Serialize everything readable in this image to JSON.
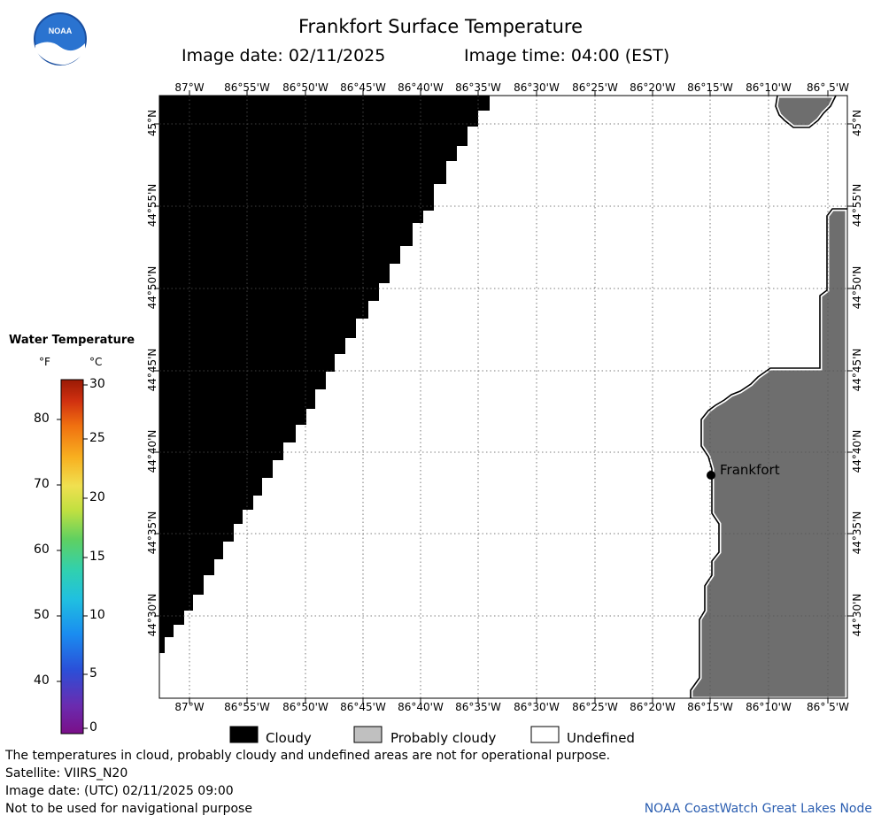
{
  "header": {
    "title": "Frankfort Surface Temperature",
    "image_date": "Image date: 02/11/2025",
    "image_time": "Image time: 04:00 (EST)"
  },
  "logo": {
    "text": "NOAA",
    "icon": "noaa-logo-icon"
  },
  "map": {
    "lon_labels": [
      "87°W",
      "86°55'W",
      "86°50'W",
      "86°45'W",
      "86°40'W",
      "86°35'W",
      "86°30'W",
      "86°25'W",
      "86°20'W",
      "86°15'W",
      "86°10'W",
      "86° 5'W"
    ],
    "lat_labels": [
      "45°N",
      "44°55'N",
      "44°50'N",
      "44°45'N",
      "44°40'N",
      "44°35'N",
      "44°30'N"
    ],
    "city": "Frankfort",
    "colors": {
      "cloud": "#000000",
      "land": "#6e6e6e",
      "water": "#ffffff",
      "coast": "#000000",
      "grid": "#555555"
    }
  },
  "legend": {
    "title": "Water Temperature",
    "unit_f": "°F",
    "unit_c": "°C",
    "f_labels": [
      "80",
      "70",
      "60",
      "50",
      "40"
    ],
    "c_labels": [
      "30",
      "25",
      "20",
      "15",
      "10",
      "5",
      "0"
    ]
  },
  "key": {
    "cloudy": "Cloudy",
    "probably_cloudy": "Probably cloudy",
    "undefined": "Undefined"
  },
  "footer": {
    "line1": "The temperatures in cloud, probably cloudy and undefined areas are not for operational purpose.",
    "line2": "Satellite: VIIRS_N20",
    "line3": "Image date: (UTC) 02/11/2025  09:00",
    "line4": "Not to be used for navigational purpose",
    "credit": "NOAA CoastWatch Great Lakes Node"
  }
}
